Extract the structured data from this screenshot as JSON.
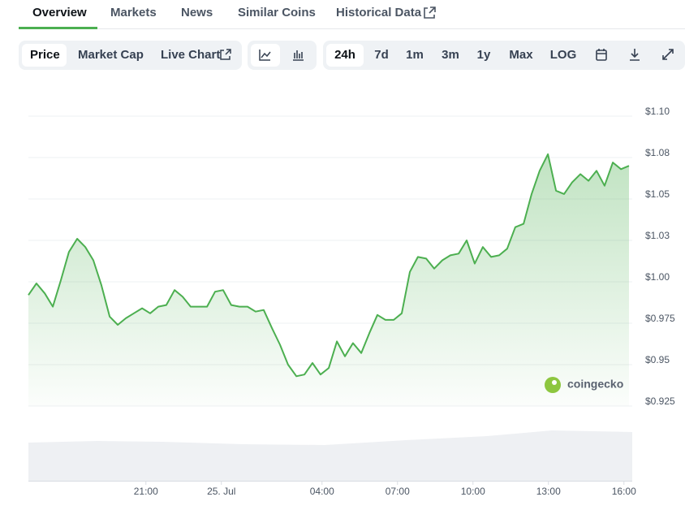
{
  "tabs": [
    "Overview",
    "Markets",
    "News",
    "Similar Coins",
    "Historical Data"
  ],
  "view_buttons": [
    "Price",
    "Market Cap",
    "Live Chart"
  ],
  "range_buttons": [
    "24h",
    "7d",
    "1m",
    "3m",
    "1y",
    "Max",
    "LOG"
  ],
  "watermark": "coingecko",
  "chart_data": {
    "type": "line",
    "x": [
      0,
      0.32,
      0.65,
      0.97,
      1.29,
      1.61,
      1.94,
      2.26,
      2.58,
      2.9,
      3.23,
      3.55,
      3.87,
      4.19,
      4.52,
      4.84,
      5.16,
      5.48,
      5.81,
      6.13,
      6.45,
      6.77,
      7.1,
      7.42,
      7.74,
      8.06,
      8.39,
      8.71,
      9.03,
      9.35,
      9.68,
      10,
      10.32,
      10.65,
      10.97,
      11.29,
      11.61,
      11.94,
      12.26,
      12.58,
      12.9,
      13.23,
      13.55,
      13.87,
      14.19,
      14.52,
      14.84,
      15.16,
      15.48,
      15.81,
      16.13,
      16.45,
      16.77,
      17.1,
      17.42,
      17.74,
      18.06,
      18.39,
      18.71,
      19.03,
      19.35,
      19.68,
      20,
      20.32,
      20.65,
      20.97,
      21.29,
      21.61,
      21.94,
      22.26,
      22.58,
      22.9,
      23.23,
      23.55,
      23.87
    ],
    "series": [
      {
        "color": "#4caf50",
        "values": [
          0.992,
          0.999,
          0.993,
          0.985,
          1.001,
          1.018,
          1.026,
          1.021,
          1.013,
          0.998,
          0.979,
          0.974,
          0.978,
          0.981,
          0.984,
          0.981,
          0.985,
          0.986,
          0.995,
          0.991,
          0.985,
          0.985,
          0.985,
          0.994,
          0.995,
          0.986,
          0.985,
          0.985,
          0.982,
          0.983,
          0.972,
          0.962,
          0.95,
          0.943,
          0.944,
          0.951,
          0.944,
          0.948,
          0.964,
          0.955,
          0.963,
          0.957,
          0.969,
          0.98,
          0.977,
          0.977,
          0.981,
          1.006,
          1.015,
          1.014,
          1.008,
          1.013,
          1.016,
          1.017,
          1.025,
          1.011,
          1.021,
          1.015,
          1.016,
          1.02,
          1.033,
          1.035,
          1.053,
          1.067,
          1.077,
          1.055,
          1.053,
          1.06,
          1.065,
          1.061,
          1.067,
          1.058,
          1.072,
          1.068,
          1.07
        ]
      }
    ],
    "xlim": [
      0,
      24
    ],
    "xticks": [
      {
        "value": 4.67,
        "label": "21:00"
      },
      {
        "value": 7.67,
        "label": "25. Jul"
      },
      {
        "value": 11.67,
        "label": "04:00"
      },
      {
        "value": 14.67,
        "label": "07:00"
      },
      {
        "value": 17.67,
        "label": "10:00"
      },
      {
        "value": 20.67,
        "label": "13:00"
      },
      {
        "value": 23.67,
        "label": "16:00"
      }
    ],
    "ylim": [
      0.925,
      1.1
    ],
    "yticks": [
      {
        "value": 1.1,
        "label": "$1.10"
      },
      {
        "value": 1.075,
        "label": "$1.08"
      },
      {
        "value": 1.05,
        "label": "$1.05"
      },
      {
        "value": 1.025,
        "label": "$1.03"
      },
      {
        "value": 1.0,
        "label": "$1.00"
      },
      {
        "value": 0.975,
        "label": "$0.975"
      },
      {
        "value": 0.95,
        "label": "$0.95"
      },
      {
        "value": 0.925,
        "label": "$0.925"
      }
    ],
    "grid": true
  }
}
